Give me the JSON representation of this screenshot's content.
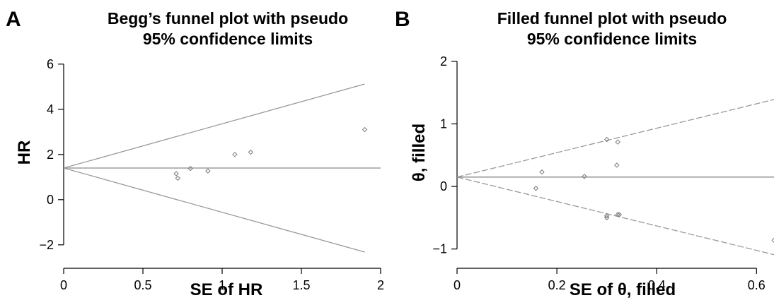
{
  "chart_data": [
    {
      "panel": "A",
      "type": "scatter",
      "title": [
        "Begg’s funnel plot with pseudo",
        "95% confidence limits"
      ],
      "xlabel": "SE of HR",
      "ylabel": "HR",
      "xlim": [
        0,
        2
      ],
      "ylim": [
        -2.6,
        6.4
      ],
      "x_ticks": [
        0,
        0.5,
        1,
        1.5,
        2
      ],
      "x_tick_labels": [
        "0",
        "0.5",
        "1",
        "1.5",
        "2"
      ],
      "y_ticks": [
        -2,
        0,
        2,
        4,
        6
      ],
      "y_tick_labels": [
        "−2",
        "0",
        "2",
        "4",
        "6"
      ],
      "grid": false,
      "pooled_estimate": 1.4,
      "limit_lines": {
        "upper": [
          [
            0,
            1.4
          ],
          [
            1.9,
            5.12
          ]
        ],
        "lower": [
          [
            0,
            1.4
          ],
          [
            1.9,
            -2.32
          ]
        ],
        "style": "solid"
      },
      "series": [
        {
          "points": [
            {
              "x": 0.71,
              "y": 1.15
            },
            {
              "x": 0.72,
              "y": 0.95
            },
            {
              "x": 0.8,
              "y": 1.38
            },
            {
              "x": 0.91,
              "y": 1.27
            },
            {
              "x": 1.08,
              "y": 2.0
            },
            {
              "x": 1.18,
              "y": 2.1
            },
            {
              "x": 1.9,
              "y": 3.1
            }
          ]
        }
      ]
    },
    {
      "panel": "B",
      "type": "scatter",
      "title": [
        "Filled funnel plot with pseudo",
        "95% confidence limits"
      ],
      "xlabel": "SE of θ, filled",
      "ylabel": "θ, filled",
      "xlim": [
        0,
        0.635
      ],
      "ylim": [
        -1.15,
        2.1
      ],
      "x_ticks": [
        0,
        0.2,
        0.4,
        0.6
      ],
      "x_tick_labels": [
        "0",
        "0.2",
        "0.4",
        "0.6"
      ],
      "y_ticks": [
        -1,
        0,
        1,
        2
      ],
      "y_tick_labels": [
        "−1",
        "0",
        "1",
        "2"
      ],
      "grid": false,
      "pooled_estimate": 0.15,
      "limit_lines": {
        "upper": [
          [
            0,
            0.15
          ],
          [
            0.635,
            1.39
          ]
        ],
        "lower": [
          [
            0,
            0.15
          ],
          [
            0.635,
            -1.09
          ]
        ],
        "style": "dashed"
      },
      "series": [
        {
          "points": [
            {
              "x": 0.158,
              "y": -0.03
            },
            {
              "x": 0.17,
              "y": 0.23
            },
            {
              "x": 0.255,
              "y": 0.16
            },
            {
              "x": 0.3,
              "y": 0.75
            },
            {
              "x": 0.3,
              "y": -0.47
            },
            {
              "x": 0.3,
              "y": -0.5
            },
            {
              "x": 0.32,
              "y": 0.34
            },
            {
              "x": 0.322,
              "y": 0.71
            },
            {
              "x": 0.322,
              "y": -0.45
            },
            {
              "x": 0.325,
              "y": -0.45
            },
            {
              "x": 0.635,
              "y": -0.86
            }
          ]
        }
      ]
    }
  ]
}
